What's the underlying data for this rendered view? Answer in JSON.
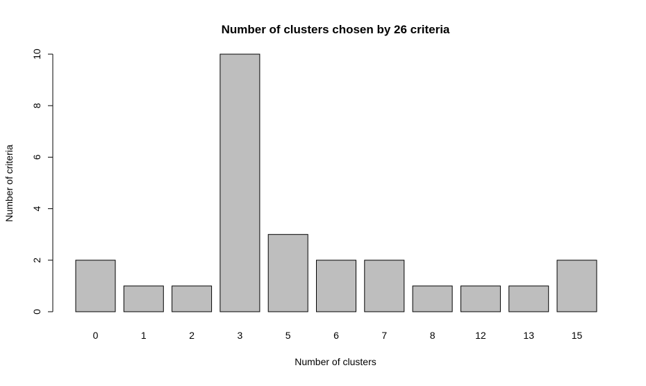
{
  "chart_data": {
    "type": "bar",
    "title": "Number of clusters chosen by 26 criteria",
    "xlabel": "Number of clusters",
    "ylabel": "Number of criteria",
    "categories": [
      "0",
      "1",
      "2",
      "3",
      "5",
      "6",
      "7",
      "8",
      "12",
      "13",
      "15"
    ],
    "values": [
      2,
      1,
      1,
      10,
      3,
      2,
      2,
      1,
      1,
      1,
      2
    ],
    "ylim": [
      0,
      10
    ],
    "yticks": [
      0,
      2,
      4,
      6,
      8,
      10
    ],
    "grid": false,
    "legend": "none",
    "colors": {
      "bar_fill": "#bebebe",
      "bar_stroke": "#000000",
      "axis": "#000000",
      "background": "#ffffff"
    }
  }
}
